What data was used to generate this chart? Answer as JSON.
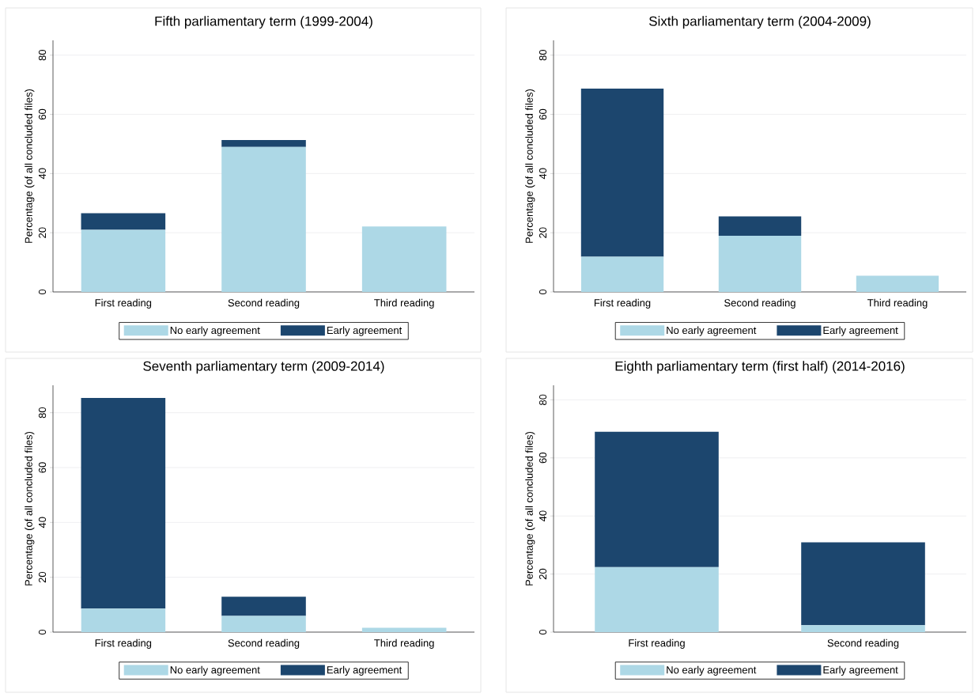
{
  "chart_data": [
    {
      "type": "bar",
      "title": "Fifth parliamentary term (1999-2004)",
      "ylabel": "Percentage (of all concluded files)",
      "categories": [
        "First reading",
        "Second reading",
        "Third reading"
      ],
      "series": [
        {
          "name": "No early agreement",
          "color": "#add8e6",
          "values": [
            21.0,
            49.0,
            22.1
          ]
        },
        {
          "name": "Early agreement",
          "color": "#1c466e",
          "values": [
            5.6,
            2.3,
            0
          ]
        }
      ],
      "stacked": true,
      "ylim": [
        0,
        85
      ],
      "yticks": [
        0,
        20,
        40,
        60,
        80
      ],
      "grid": "y",
      "legend": "bottom"
    },
    {
      "type": "bar",
      "title": "Sixth parliamentary term (2004-2009)",
      "ylabel": "Percentage (of all concluded files)",
      "categories": [
        "First reading",
        "Second reading",
        "Third reading"
      ],
      "series": [
        {
          "name": "No early agreement",
          "color": "#add8e6",
          "values": [
            11.9,
            19.0,
            5.5
          ]
        },
        {
          "name": "Early agreement",
          "color": "#1c466e",
          "values": [
            56.8,
            6.5,
            0
          ]
        }
      ],
      "stacked": true,
      "ylim": [
        0,
        85
      ],
      "yticks": [
        0,
        20,
        40,
        60,
        80
      ],
      "grid": "y",
      "legend": "bottom"
    },
    {
      "type": "bar",
      "title": "Seventh parliamentary term (2009-2014)",
      "ylabel": "Percentage (of all concluded files)",
      "categories": [
        "First reading",
        "Second reading",
        "Third reading"
      ],
      "series": [
        {
          "name": "No early agreement",
          "color": "#add8e6",
          "values": [
            8.6,
            5.9,
            1.6
          ]
        },
        {
          "name": "Early agreement",
          "color": "#1c466e",
          "values": [
            76.8,
            7.0,
            0
          ]
        }
      ],
      "stacked": true,
      "ylim": [
        0,
        90
      ],
      "yticks": [
        0,
        20,
        40,
        60,
        80
      ],
      "grid": "y",
      "legend": "bottom"
    },
    {
      "type": "bar",
      "title": "Eighth parliamentary term (first half) (2014-2016)",
      "ylabel": "Percentage (of all concluded files)",
      "categories": [
        "First reading",
        "Second reading"
      ],
      "series": [
        {
          "name": "No early agreement",
          "color": "#add8e6",
          "values": [
            22.4,
            2.4
          ]
        },
        {
          "name": "Early agreement",
          "color": "#1c466e",
          "values": [
            46.6,
            28.5
          ]
        }
      ],
      "stacked": true,
      "ylim": [
        0,
        85
      ],
      "yticks": [
        0,
        20,
        40,
        60,
        80
      ],
      "grid": "y",
      "legend": "bottom"
    }
  ]
}
